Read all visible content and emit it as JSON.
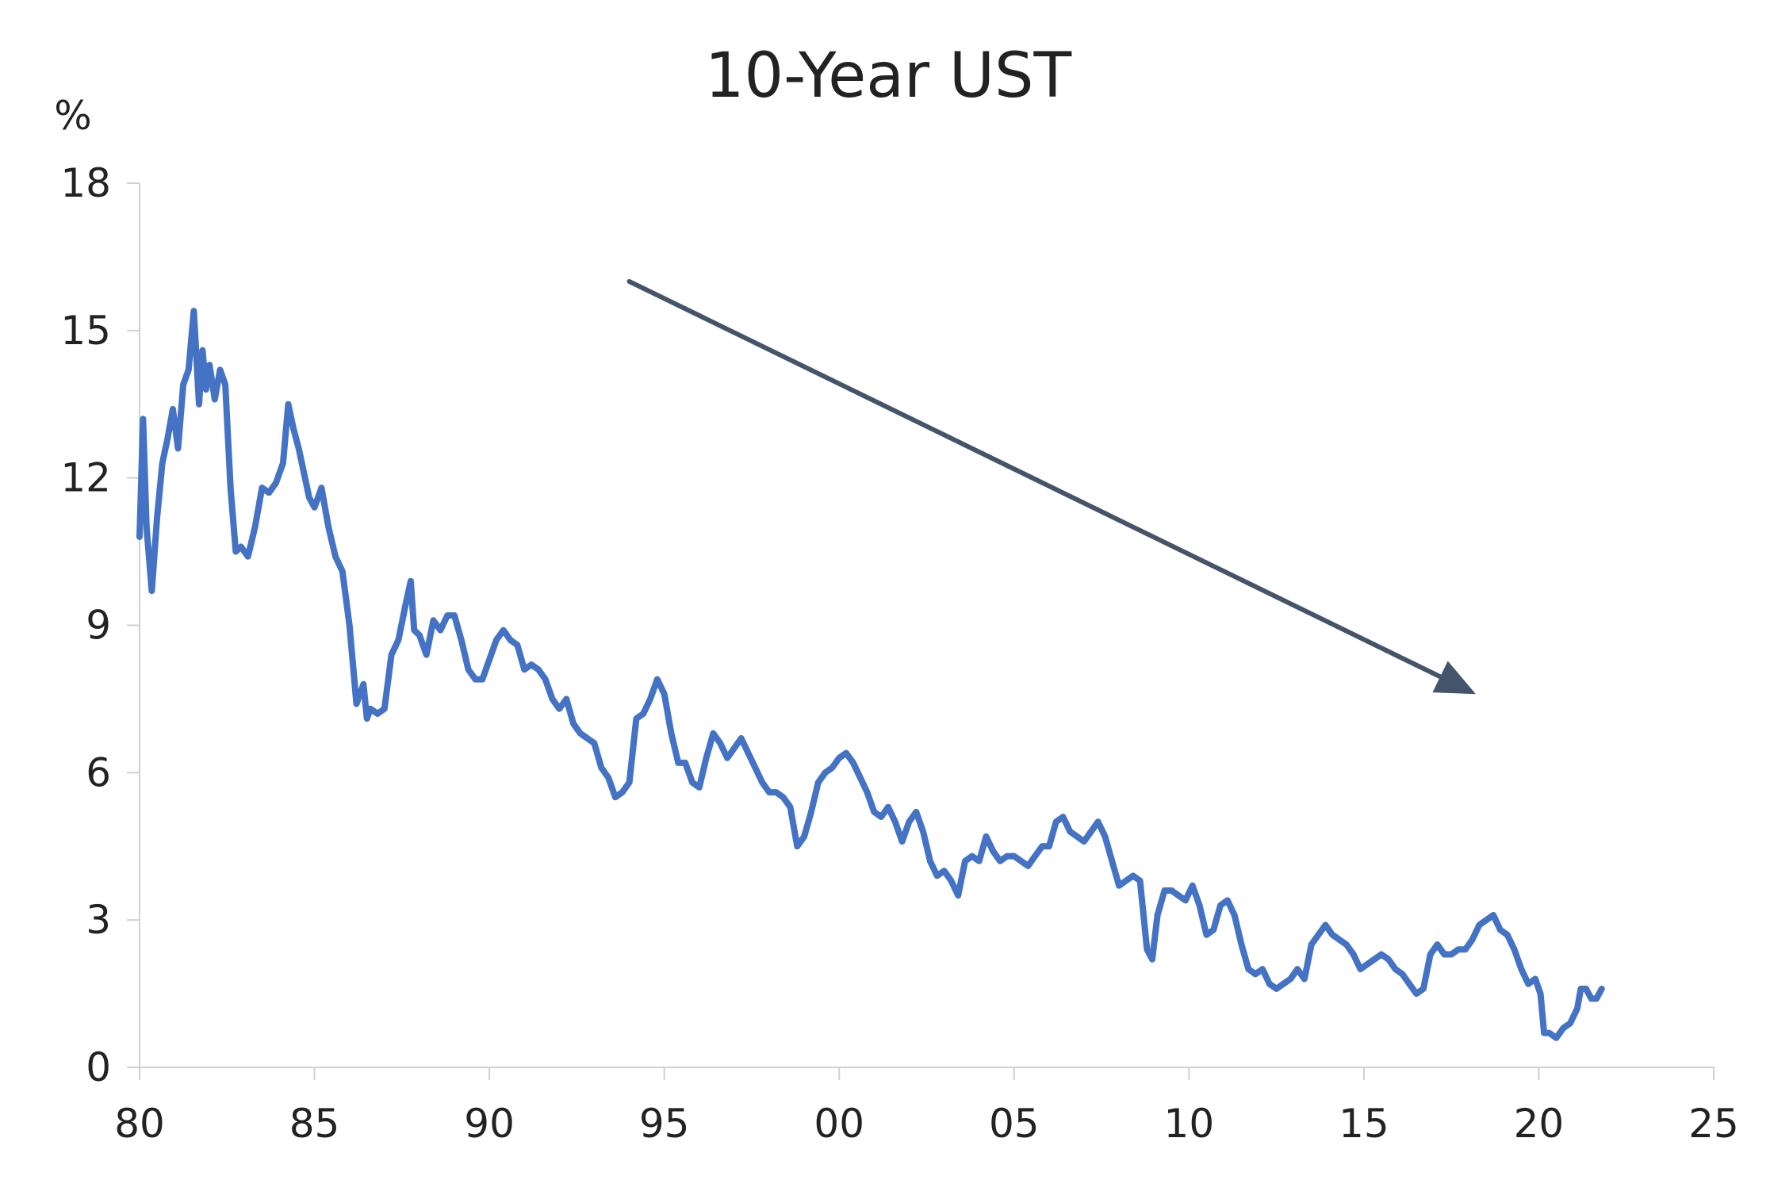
{
  "chart_data": {
    "type": "line",
    "title": "10-Year UST",
    "ylabel": "%",
    "xlabel": "",
    "xlim": [
      1980,
      2025
    ],
    "ylim": [
      0,
      18
    ],
    "x_ticks": [
      1980,
      1985,
      1990,
      1995,
      2000,
      2005,
      2010,
      2015,
      2020,
      2025
    ],
    "x_tick_labels": [
      "80",
      "85",
      "90",
      "95",
      "00",
      "05",
      "10",
      "15",
      "20",
      "25"
    ],
    "y_ticks": [
      0,
      3,
      6,
      9,
      12,
      15,
      18
    ],
    "y_tick_labels": [
      "0",
      "3",
      "6",
      "9",
      "12",
      "15",
      "18"
    ],
    "grid": false,
    "series": [
      {
        "color": "#4472C4",
        "x": [
          1980.0,
          1980.1,
          1980.2,
          1980.35,
          1980.5,
          1980.65,
          1980.8,
          1980.95,
          1981.1,
          1981.25,
          1981.4,
          1981.55,
          1981.7,
          1981.8,
          1981.9,
          1982.0,
          1982.15,
          1982.3,
          1982.45,
          1982.6,
          1982.75,
          1982.9,
          1983.1,
          1983.3,
          1983.5,
          1983.7,
          1983.9,
          1984.1,
          1984.25,
          1984.4,
          1984.55,
          1984.7,
          1984.85,
          1985.0,
          1985.2,
          1985.4,
          1985.6,
          1985.8,
          1986.0,
          1986.2,
          1986.4,
          1986.5,
          1986.6,
          1986.8,
          1987.0,
          1987.2,
          1987.4,
          1987.6,
          1987.75,
          1987.85,
          1988.0,
          1988.2,
          1988.4,
          1988.6,
          1988.8,
          1989.0,
          1989.2,
          1989.4,
          1989.6,
          1989.8,
          1990.0,
          1990.2,
          1990.4,
          1990.6,
          1990.8,
          1991.0,
          1991.2,
          1991.4,
          1991.6,
          1991.8,
          1992.0,
          1992.2,
          1992.4,
          1992.6,
          1992.8,
          1993.0,
          1993.2,
          1993.4,
          1993.6,
          1993.8,
          1994.0,
          1994.2,
          1994.4,
          1994.6,
          1994.8,
          1995.0,
          1995.2,
          1995.4,
          1995.6,
          1995.8,
          1996.0,
          1996.2,
          1996.4,
          1996.6,
          1996.8,
          1997.0,
          1997.2,
          1997.4,
          1997.6,
          1997.8,
          1998.0,
          1998.2,
          1998.4,
          1998.6,
          1998.8,
          1999.0,
          1999.2,
          1999.4,
          1999.6,
          1999.8,
          2000.0,
          2000.2,
          2000.4,
          2000.6,
          2000.8,
          2001.0,
          2001.2,
          2001.4,
          2001.6,
          2001.8,
          2002.0,
          2002.2,
          2002.4,
          2002.6,
          2002.8,
          2003.0,
          2003.2,
          2003.4,
          2003.6,
          2003.8,
          2004.0,
          2004.2,
          2004.4,
          2004.6,
          2004.8,
          2005.0,
          2005.2,
          2005.4,
          2005.6,
          2005.8,
          2006.0,
          2006.2,
          2006.4,
          2006.6,
          2006.8,
          2007.0,
          2007.2,
          2007.4,
          2007.6,
          2007.8,
          2008.0,
          2008.2,
          2008.4,
          2008.6,
          2008.8,
          2008.95,
          2009.1,
          2009.3,
          2009.5,
          2009.7,
          2009.9,
          2010.1,
          2010.3,
          2010.5,
          2010.7,
          2010.9,
          2011.1,
          2011.3,
          2011.5,
          2011.7,
          2011.9,
          2012.1,
          2012.3,
          2012.5,
          2012.7,
          2012.9,
          2013.1,
          2013.3,
          2013.5,
          2013.7,
          2013.9,
          2014.1,
          2014.3,
          2014.5,
          2014.7,
          2014.9,
          2015.1,
          2015.3,
          2015.5,
          2015.7,
          2015.9,
          2016.1,
          2016.3,
          2016.5,
          2016.7,
          2016.9,
          2017.1,
          2017.3,
          2017.5,
          2017.7,
          2017.9,
          2018.1,
          2018.3,
          2018.5,
          2018.7,
          2018.9,
          2019.1,
          2019.3,
          2019.5,
          2019.7,
          2019.9,
          2020.05,
          2020.15,
          2020.3,
          2020.5,
          2020.7,
          2020.9,
          2021.1,
          2021.2,
          2021.35,
          2021.5,
          2021.65,
          2021.8
        ],
        "y": [
          10.8,
          13.2,
          11.0,
          9.7,
          11.2,
          12.3,
          12.8,
          13.4,
          12.6,
          13.9,
          14.2,
          15.4,
          13.5,
          14.6,
          13.8,
          14.3,
          13.6,
          14.2,
          13.9,
          11.8,
          10.5,
          10.6,
          10.4,
          11.0,
          11.8,
          11.7,
          11.9,
          12.3,
          13.5,
          13.0,
          12.6,
          12.1,
          11.6,
          11.4,
          11.8,
          11.0,
          10.4,
          10.1,
          9.0,
          7.4,
          7.8,
          7.1,
          7.3,
          7.2,
          7.3,
          8.4,
          8.7,
          9.4,
          9.9,
          8.9,
          8.8,
          8.4,
          9.1,
          8.9,
          9.2,
          9.2,
          8.7,
          8.1,
          7.9,
          7.9,
          8.3,
          8.7,
          8.9,
          8.7,
          8.6,
          8.1,
          8.2,
          8.1,
          7.9,
          7.5,
          7.3,
          7.5,
          7.0,
          6.8,
          6.7,
          6.6,
          6.1,
          5.9,
          5.5,
          5.6,
          5.8,
          7.1,
          7.2,
          7.5,
          7.9,
          7.6,
          6.8,
          6.2,
          6.2,
          5.8,
          5.7,
          6.3,
          6.8,
          6.6,
          6.3,
          6.5,
          6.7,
          6.4,
          6.1,
          5.8,
          5.6,
          5.6,
          5.5,
          5.3,
          4.5,
          4.7,
          5.2,
          5.8,
          6.0,
          6.1,
          6.3,
          6.4,
          6.2,
          5.9,
          5.6,
          5.2,
          5.1,
          5.3,
          5.0,
          4.6,
          5.0,
          5.2,
          4.8,
          4.2,
          3.9,
          4.0,
          3.8,
          3.5,
          4.2,
          4.3,
          4.2,
          4.7,
          4.4,
          4.2,
          4.3,
          4.3,
          4.2,
          4.1,
          4.3,
          4.5,
          4.5,
          5.0,
          5.1,
          4.8,
          4.7,
          4.6,
          4.8,
          5.0,
          4.7,
          4.2,
          3.7,
          3.8,
          3.9,
          3.8,
          2.4,
          2.2,
          3.1,
          3.6,
          3.6,
          3.5,
          3.4,
          3.7,
          3.3,
          2.7,
          2.8,
          3.3,
          3.4,
          3.1,
          2.5,
          2.0,
          1.9,
          2.0,
          1.7,
          1.6,
          1.7,
          1.8,
          2.0,
          1.8,
          2.5,
          2.7,
          2.9,
          2.7,
          2.6,
          2.5,
          2.3,
          2.0,
          2.1,
          2.2,
          2.3,
          2.2,
          2.0,
          1.9,
          1.7,
          1.5,
          1.6,
          2.3,
          2.5,
          2.3,
          2.3,
          2.4,
          2.4,
          2.6,
          2.9,
          3.0,
          3.1,
          2.8,
          2.7,
          2.4,
          2.0,
          1.7,
          1.8,
          1.5,
          0.7,
          0.7,
          0.6,
          0.8,
          0.9,
          1.2,
          1.6,
          1.6,
          1.4,
          1.4,
          1.6
        ]
      }
    ],
    "annotations": [
      {
        "type": "trend-arrow",
        "from": [
          1994.0,
          16.0
        ],
        "to": [
          2018.2,
          7.6
        ],
        "color": "#44546A"
      }
    ]
  }
}
